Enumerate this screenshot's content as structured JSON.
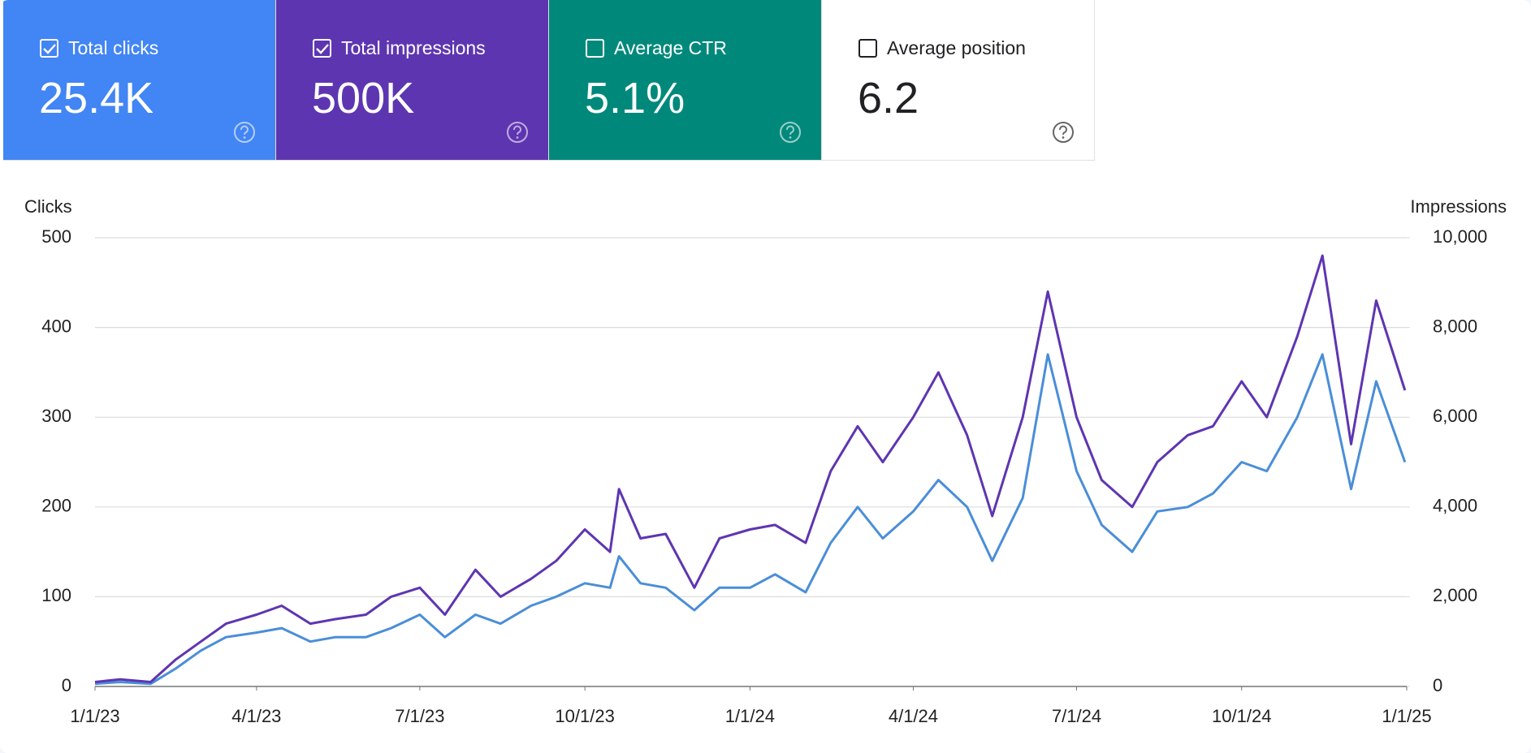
{
  "cards": [
    {
      "label": "Total clicks",
      "value": "25.4K",
      "checked": true,
      "color": "#4285f4"
    },
    {
      "label": "Total impressions",
      "value": "500K",
      "checked": true,
      "color": "#5e35b1"
    },
    {
      "label": "Average CTR",
      "value": "5.1%",
      "checked": false,
      "color": "#00897b"
    },
    {
      "label": "Average position",
      "value": "6.2",
      "checked": false,
      "color": "#ffffff"
    }
  ],
  "chart_data": {
    "type": "line",
    "y_label": "Clicks",
    "y2_label": "Impressions",
    "x": [
      "1/1/23",
      "1/15/23",
      "2/1/23",
      "2/15/23",
      "3/1/23",
      "3/15/23",
      "4/1/23",
      "4/15/23",
      "5/1/23",
      "5/15/23",
      "6/1/23",
      "6/15/23",
      "7/1/23",
      "7/15/23",
      "8/1/23",
      "8/15/23",
      "9/1/23",
      "9/15/23",
      "10/1/23",
      "10/15/23",
      "10/20/23",
      "11/1/23",
      "11/15/23",
      "12/1/23",
      "12/15/23",
      "1/1/24",
      "1/15/24",
      "2/1/24",
      "2/15/24",
      "3/1/24",
      "3/15/24",
      "4/1/24",
      "4/15/24",
      "5/1/24",
      "5/15/24",
      "6/1/24",
      "6/15/24",
      "7/1/24",
      "7/15/24",
      "8/1/24",
      "8/15/24",
      "9/1/24",
      "9/15/24",
      "10/1/24",
      "10/15/24",
      "11/1/24",
      "11/15/24",
      "12/1/24",
      "12/15/24",
      "12/31/24"
    ],
    "series": [
      {
        "name": "Clicks",
        "color": "#4a8ed8",
        "values": [
          3,
          5,
          3,
          20,
          40,
          55,
          60,
          65,
          50,
          55,
          55,
          65,
          80,
          55,
          80,
          70,
          90,
          100,
          115,
          110,
          145,
          115,
          110,
          85,
          110,
          110,
          125,
          105,
          160,
          200,
          165,
          195,
          230,
          200,
          140,
          210,
          370,
          240,
          180,
          150,
          195,
          200,
          215,
          250,
          240,
          300,
          370,
          220,
          340,
          250
        ]
      },
      {
        "name": "Impressions",
        "color": "#5e35b1",
        "axis": "y2",
        "values": [
          100,
          160,
          100,
          600,
          1000,
          1400,
          1600,
          1800,
          1400,
          1500,
          1600,
          2000,
          2200,
          1600,
          2600,
          2000,
          2400,
          2800,
          3500,
          3000,
          4400,
          3300,
          3400,
          2200,
          3300,
          3500,
          3600,
          3200,
          4800,
          5800,
          5000,
          6000,
          7000,
          5600,
          3800,
          6000,
          8800,
          6000,
          4600,
          4000,
          5000,
          5600,
          5800,
          6800,
          6000,
          7800,
          9600,
          5400,
          8600,
          6600
        ]
      }
    ],
    "xlim": [
      "1/1/23",
      "1/1/25"
    ],
    "xticks": [
      "1/1/23",
      "4/1/23",
      "7/1/23",
      "10/1/23",
      "1/1/24",
      "4/1/24",
      "7/1/24",
      "10/1/24",
      "1/1/25"
    ],
    "ylim": [
      0,
      500
    ],
    "yticks": [
      0,
      100,
      200,
      300,
      400,
      500
    ],
    "y2lim": [
      0,
      10000
    ],
    "y2ticks": [
      0,
      {
        "value": 2000,
        "label": "2,000"
      },
      {
        "value": 4000,
        "label": "4,000"
      },
      {
        "value": 6000,
        "label": "6,000"
      },
      {
        "value": 8000,
        "label": "8,000"
      },
      {
        "value": 10000,
        "label": "10,000"
      }
    ],
    "grid": true
  }
}
